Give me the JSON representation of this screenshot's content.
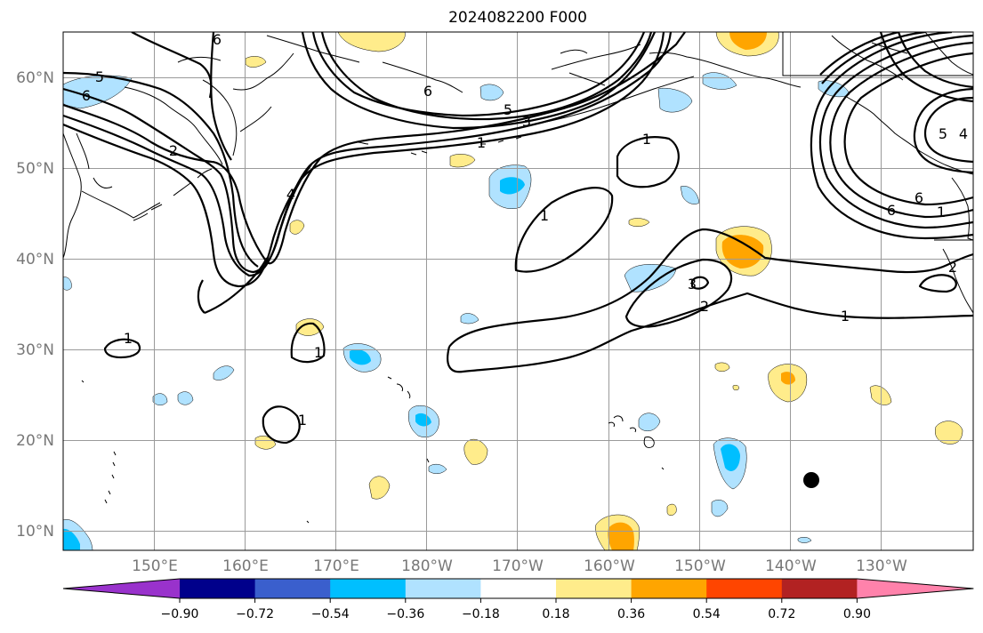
{
  "title": "2024082200 F000",
  "lat_labels": [
    "60°N",
    "50°N",
    "40°N",
    "30°N",
    "20°N",
    "10°N"
  ],
  "lon_labels": [
    "150°E",
    "160°E",
    "170°E",
    "180°W",
    "170°W",
    "160°W",
    "150°W",
    "140°W",
    "130°W"
  ],
  "contour_labels": [
    "1",
    "2",
    "3",
    "4",
    "5",
    "6"
  ],
  "colorbar": {
    "ticks": [
      "−0.90",
      "−0.72",
      "−0.54",
      "−0.36",
      "−0.18",
      "0.18",
      "0.36",
      "0.54",
      "0.72",
      "0.90"
    ],
    "colors": [
      "#9932cc",
      "#00008b",
      "#3a5fcd",
      "#00bfff",
      "#b0e2ff",
      "#ffffff",
      "#ffec8b",
      "#ffa500",
      "#ff4500",
      "#b22222",
      "#ff82ab"
    ]
  },
  "colors": {
    "neg_light": "#b0e2ff",
    "neg_mid": "#00bfff",
    "pos_light": "#ffec8b",
    "pos_mid": "#ffa500",
    "grid": "#9a9a9a",
    "tick_text": "#777777"
  },
  "marker": {
    "type": "storm-center-dot",
    "lat": 15.8,
    "lon": -138.0
  }
}
